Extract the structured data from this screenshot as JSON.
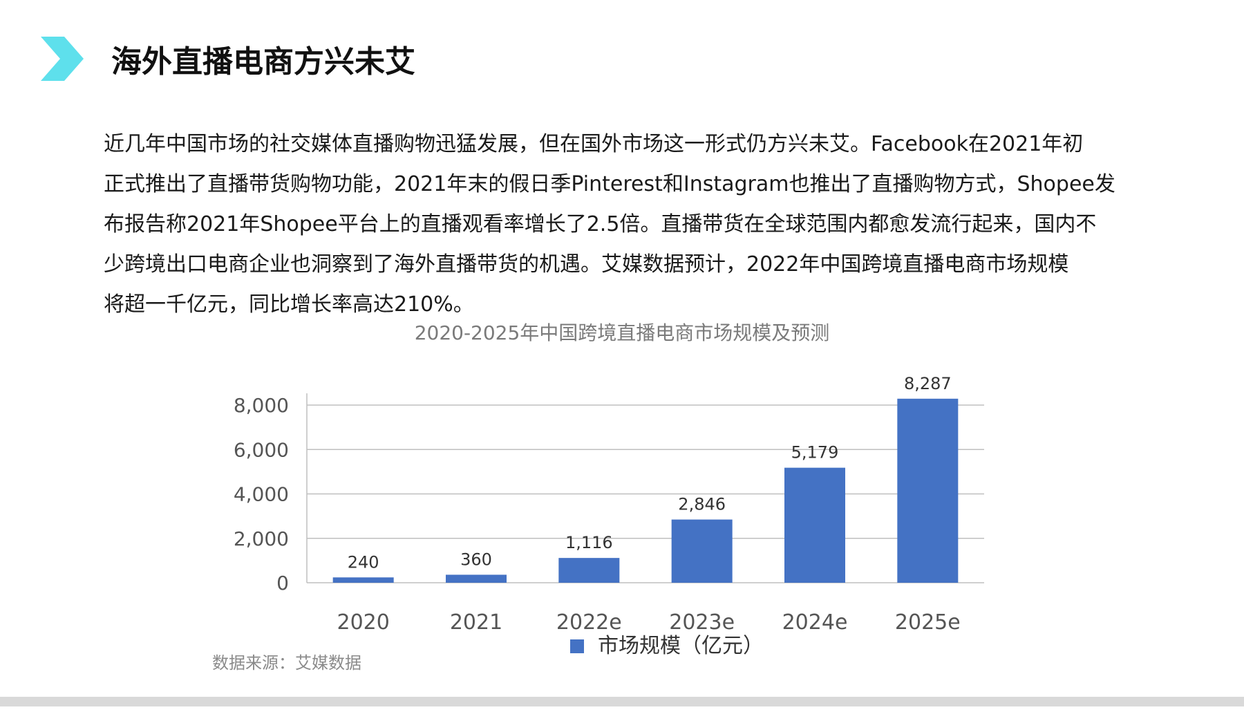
{
  "page": {
    "title": "海外直播电商方兴未艾",
    "accent_color": "#5ee0ec",
    "icon": "chevron-right-icon"
  },
  "intro_lines": [
    "近几年中国市场的社交媒体直播购物迅猛发展，但在国外市场这一形式仍方兴未艾。Facebook在2021年初",
    "正式推出了直播带货购物功能，2021年末的假日季Pinterest和Instagram也推出了直播购物方式，Shopee发",
    "布报告称2021年Shopee平台上的直播观看率增长了2.5倍。直播带货在全球范围内都愈发流行起来，国内不",
    "少跨境出口电商企业也洞察到了海外直播带货的机遇。艾媒数据预计，2022年中国跨境直播电商市场规模",
    "将超一千亿元，同比增长率高达210%。"
  ],
  "chart_data": {
    "type": "bar",
    "title": "2020-2025年中国跨境直播电商市场规模及预测",
    "categories": [
      "2020",
      "2021",
      "2022e",
      "2023e",
      "2024e",
      "2025e"
    ],
    "series": [
      {
        "name": "市场规模（亿元）",
        "values": [
          240,
          360,
          1116,
          2846,
          5179,
          8287
        ],
        "color": "#4472c4"
      }
    ],
    "data_labels": [
      "240",
      "360",
      "1,116",
      "2,846",
      "5,179",
      "8,287"
    ],
    "y_ticks": [
      0,
      2000,
      4000,
      6000,
      8000
    ],
    "y_tick_labels": [
      "0",
      "2,000",
      "4,000",
      "6,000",
      "8,000"
    ],
    "ylim": [
      0,
      9000
    ],
    "xlabel": "",
    "ylabel": "",
    "grid": true,
    "legend_position": "bottom"
  },
  "source_note": "数据来源：艾媒数据"
}
